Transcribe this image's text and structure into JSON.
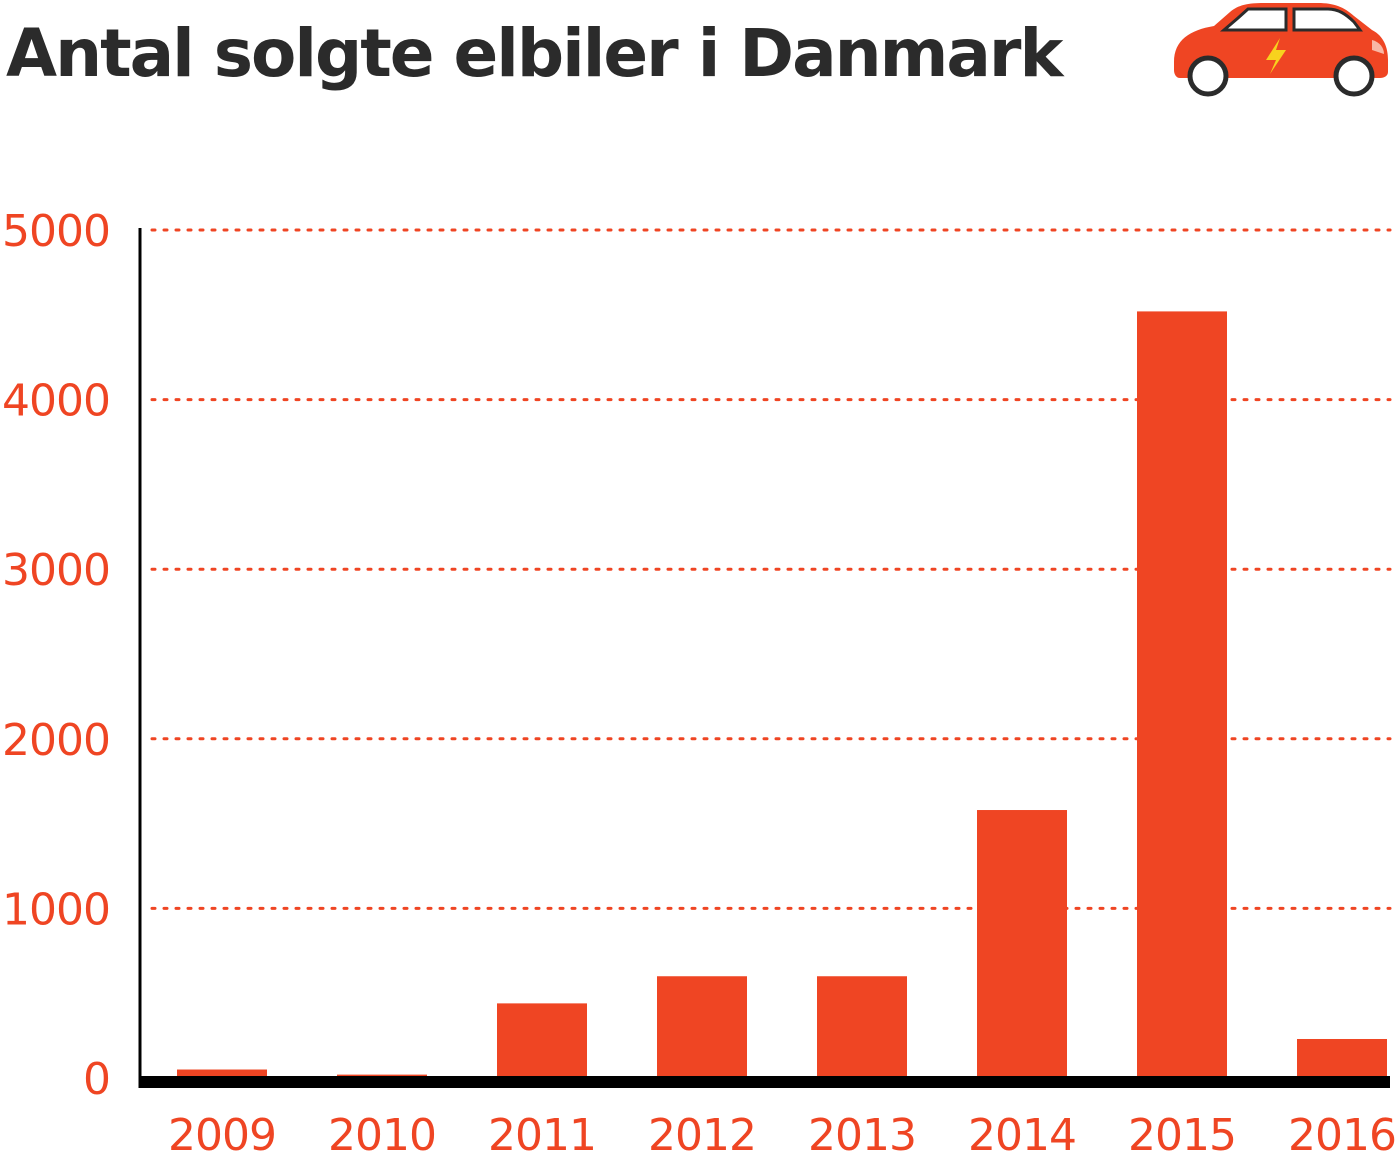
{
  "header": {
    "title": "Antal solgte elbiler i Danmark",
    "icon": "electric-car-icon"
  },
  "colors": {
    "accent": "#ef4523",
    "title": "#2b2b2b",
    "axis": "#000000",
    "bolt": "#f7d21e"
  },
  "chart_data": {
    "type": "bar",
    "title": "Antal solgte elbiler i Danmark",
    "xlabel": "",
    "ylabel": "",
    "categories": [
      "2009",
      "2010",
      "2011",
      "2012",
      "2013",
      "2014",
      "2015",
      "2016"
    ],
    "values": [
      50,
      20,
      440,
      600,
      600,
      1580,
      4520,
      230
    ],
    "ylim": [
      0,
      5000
    ],
    "yticks": [
      0,
      1000,
      2000,
      3000,
      4000,
      5000
    ],
    "grid": true,
    "legend": "none"
  }
}
